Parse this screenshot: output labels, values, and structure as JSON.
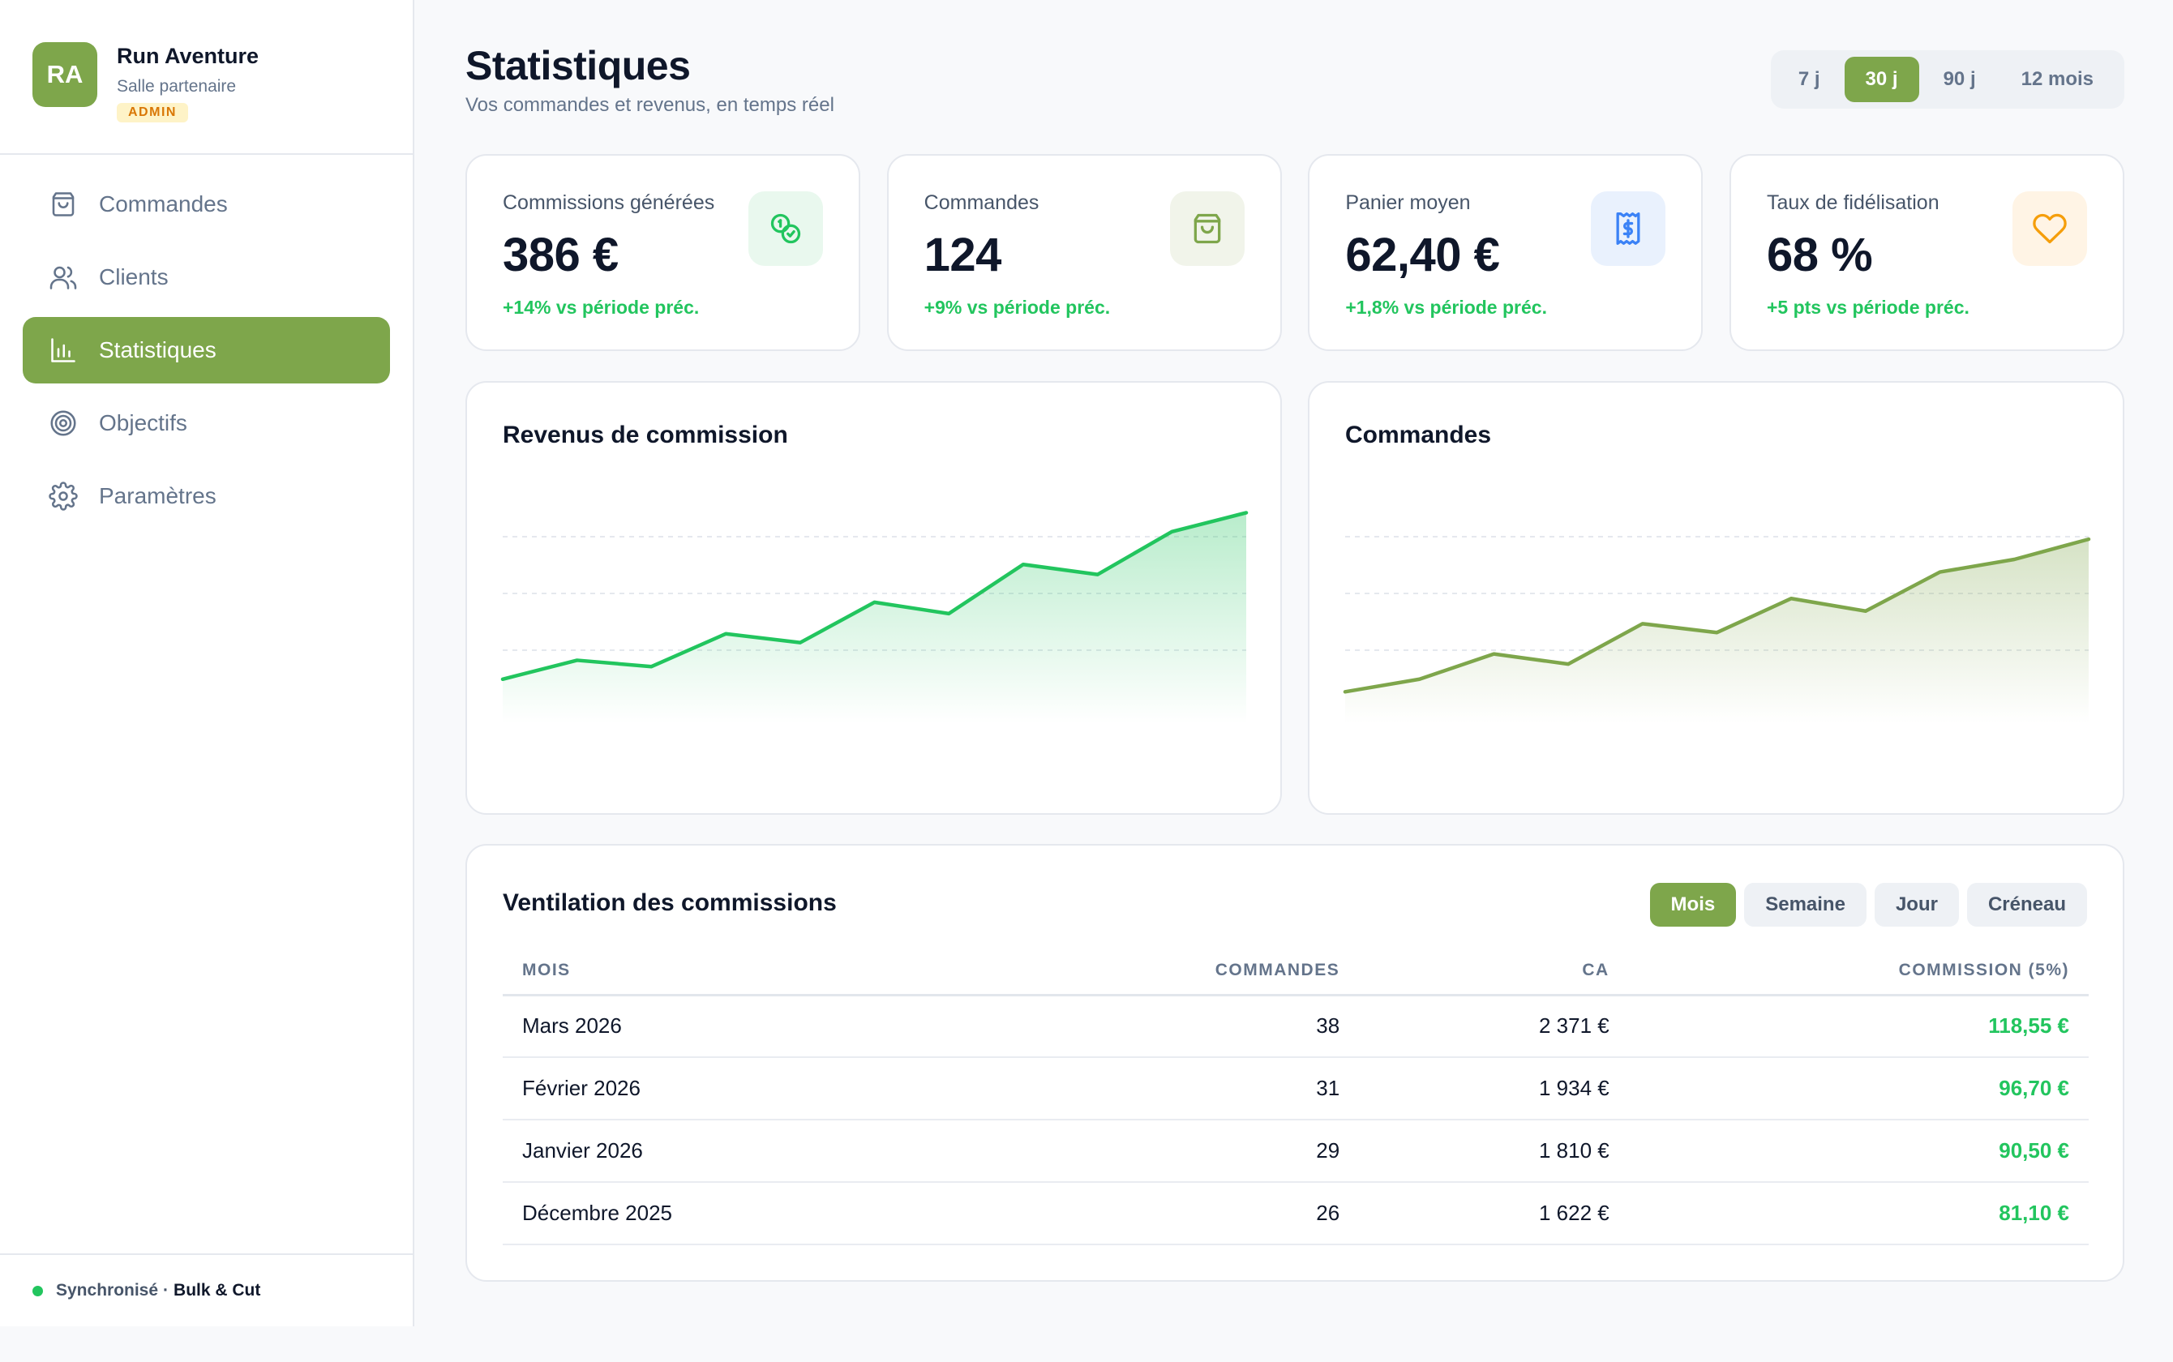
{
  "brand": {
    "initials": "RA",
    "name": "Run Aventure",
    "subtitle": "Salle partenaire",
    "badge": "ADMIN",
    "color": "#7ea64b"
  },
  "nav": [
    {
      "label": "Commandes",
      "icon": "bag-icon",
      "active": false
    },
    {
      "label": "Clients",
      "icon": "users-icon",
      "active": false
    },
    {
      "label": "Statistiques",
      "icon": "bar-chart-icon",
      "active": true
    },
    {
      "label": "Objectifs",
      "icon": "target-icon",
      "active": false
    },
    {
      "label": "Paramètres",
      "icon": "gear-icon",
      "active": false
    }
  ],
  "footer": {
    "status": "Synchronisé",
    "separator": "·",
    "partner": "Bulk & Cut",
    "status_color": "#22c55e"
  },
  "header": {
    "title": "Statistiques",
    "subtitle": "Vos commandes et revenus, en temps réel"
  },
  "range": {
    "options": [
      "7 j",
      "30 j",
      "90 j",
      "12 mois"
    ],
    "selected": "30 j"
  },
  "kpis": [
    {
      "label": "Commissions générées",
      "value": "386 €",
      "delta": "+14% vs période préc.",
      "icon": "coins-icon",
      "icon_bg": "#e9f8ee",
      "icon_color": "#22c55e"
    },
    {
      "label": "Commandes",
      "value": "124",
      "delta": "+9% vs période préc.",
      "icon": "bag-icon",
      "icon_bg": "#f1f4ea",
      "icon_color": "#7ea64b"
    },
    {
      "label": "Panier moyen",
      "value": "62,40 €",
      "delta": "+1,8% vs période préc.",
      "icon": "receipt-icon",
      "icon_bg": "#e9f1fd",
      "icon_color": "#3b82f6"
    },
    {
      "label": "Taux de fidélisation",
      "value": "68 %",
      "delta": "+5 pts vs période préc.",
      "icon": "heart-icon",
      "icon_bg": "#fff4e5",
      "icon_color": "#f59e0b"
    }
  ],
  "chart_data": [
    {
      "type": "area",
      "title": "Revenus de commission",
      "x": [
        1,
        2,
        3,
        4,
        5,
        6,
        7,
        8,
        9,
        10,
        11
      ],
      "series": [
        {
          "values": [
            22,
            37,
            32,
            58,
            51,
            83,
            74,
            113,
            105,
            139,
            154
          ]
        }
      ],
      "ylim": [
        0,
        180
      ],
      "grid": true,
      "color": "#22c55e"
    },
    {
      "type": "area",
      "title": "Commandes",
      "x": [
        1,
        2,
        3,
        4,
        5,
        6,
        7,
        8,
        9,
        10,
        11
      ],
      "series": [
        {
          "values": [
            12,
            22,
            42,
            34,
            66,
            59,
            86,
            76,
            107,
            117,
            133
          ]
        }
      ],
      "ylim": [
        0,
        180
      ],
      "grid": true,
      "color": "#7ea64b"
    }
  ],
  "table": {
    "title": "Ventilation des commissions",
    "tabs": [
      "Mois",
      "Semaine",
      "Jour",
      "Créneau"
    ],
    "active_tab": "Mois",
    "columns": [
      "MOIS",
      "COMMANDES",
      "CA",
      "COMMISSION (5%)"
    ],
    "rows": [
      {
        "month": "Mars 2026",
        "orders": "38",
        "revenue": "2 371 €",
        "commission": "118,55 €"
      },
      {
        "month": "Février 2026",
        "orders": "31",
        "revenue": "1 934 €",
        "commission": "96,70 €"
      },
      {
        "month": "Janvier 2026",
        "orders": "29",
        "revenue": "1 810 €",
        "commission": "90,50 €"
      },
      {
        "month": "Décembre 2025",
        "orders": "26",
        "revenue": "1 622 €",
        "commission": "81,10 €"
      }
    ]
  }
}
